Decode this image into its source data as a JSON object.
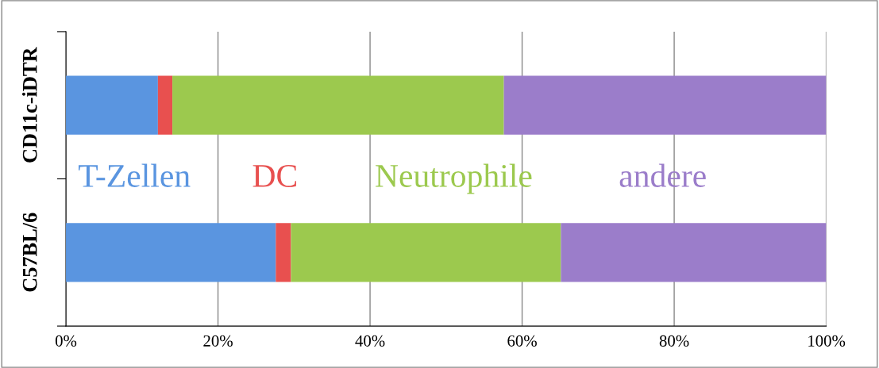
{
  "chart_data": {
    "type": "bar",
    "orientation": "horizontal",
    "stacked": true,
    "categories": [
      "CD11c-iDTR",
      "C57BL/6"
    ],
    "series": [
      {
        "name": "T-Zellen",
        "color": "#5a95e0",
        "values": [
          12.1,
          27.6
        ]
      },
      {
        "name": "DC",
        "color": "#e8504f",
        "values": [
          1.9,
          2.0
        ]
      },
      {
        "name": "Neutrophile",
        "color": "#9cc94e",
        "values": [
          43.6,
          35.5
        ]
      },
      {
        "name": "andere",
        "color": "#9b7dca",
        "values": [
          42.4,
          34.9
        ]
      }
    ],
    "xlim": [
      0,
      100
    ],
    "xticks": [
      {
        "value": 0,
        "label": "0%"
      },
      {
        "value": 20,
        "label": "20%"
      },
      {
        "value": 40,
        "label": "40%"
      },
      {
        "value": 60,
        "label": "60%"
      },
      {
        "value": 80,
        "label": "80%"
      },
      {
        "value": 100,
        "label": "100%"
      }
    ],
    "grid": "x"
  }
}
